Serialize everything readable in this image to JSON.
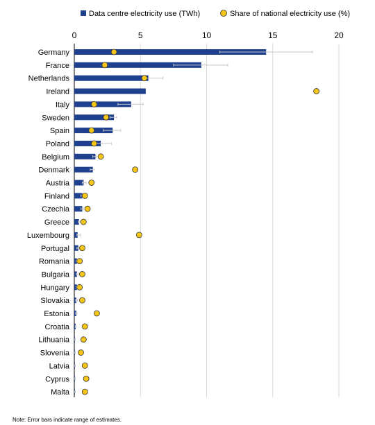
{
  "chart_data": {
    "type": "bar",
    "orientation": "horizontal",
    "xlim": [
      0,
      20
    ],
    "x_ticks": [
      0,
      5,
      10,
      15,
      20
    ],
    "grid": "vertical",
    "legend_position": "top",
    "categories": [
      "Germany",
      "France",
      "Netherlands",
      "Ireland",
      "Italy",
      "Sweden",
      "Spain",
      "Poland",
      "Belgium",
      "Denmark",
      "Austria",
      "Finland",
      "Czechia",
      "Greece",
      "Luxembourg",
      "Portugal",
      "Romania",
      "Bulgaria",
      "Hungary",
      "Slovakia",
      "Estonia",
      "Croatia",
      "Lithuania",
      "Slovenia",
      "Latvia",
      "Cyprus",
      "Malta"
    ],
    "series": [
      {
        "name": "Data centre electricity use (TWh)",
        "marker": "bar",
        "color": "#1F3F8F",
        "values": [
          14.5,
          9.6,
          5.6,
          5.4,
          4.3,
          3.0,
          2.9,
          2.0,
          1.6,
          1.4,
          0.7,
          0.6,
          0.6,
          0.35,
          0.25,
          0.3,
          0.2,
          0.2,
          0.2,
          0.15,
          0.15,
          0.1,
          0.05,
          0.05,
          0.05,
          0.05,
          0.05
        ],
        "error_low": [
          11.0,
          7.5,
          5.2,
          null,
          3.3,
          2.7,
          2.2,
          1.6,
          1.4,
          1.2,
          0.6,
          0.5,
          0.5,
          0.3,
          0.2,
          0.2,
          0.15,
          0.15,
          0.15,
          0.1,
          0.1,
          0.08,
          0.04,
          0.04,
          0.04,
          0.04,
          0.04
        ],
        "error_high": [
          18.0,
          11.6,
          6.7,
          null,
          5.2,
          3.2,
          3.5,
          2.8,
          1.7,
          1.5,
          0.9,
          0.8,
          0.7,
          0.45,
          0.45,
          0.45,
          0.3,
          0.3,
          0.3,
          0.25,
          0.2,
          0.15,
          0.08,
          0.08,
          0.08,
          0.08,
          0.08
        ]
      },
      {
        "name": "Share of national electricity use (%)",
        "marker": "circle",
        "color": "#F5C518",
        "values": [
          3.0,
          2.3,
          5.3,
          18.3,
          1.5,
          2.4,
          1.3,
          1.5,
          2.0,
          4.6,
          1.3,
          0.8,
          1.0,
          0.7,
          4.9,
          0.6,
          0.4,
          0.6,
          0.4,
          0.6,
          1.7,
          0.8,
          0.7,
          0.5,
          0.8,
          0.9,
          0.8
        ]
      }
    ]
  },
  "note": "Note: Error bars indicate range of estimates."
}
